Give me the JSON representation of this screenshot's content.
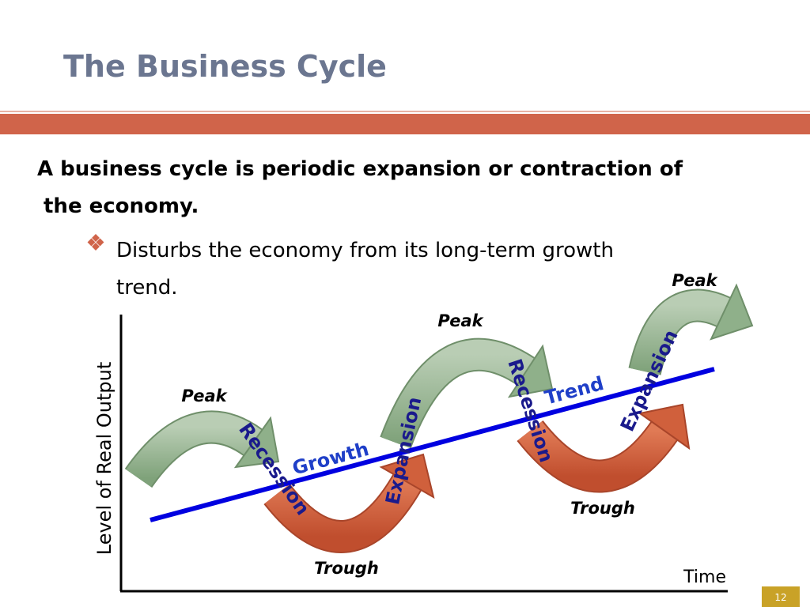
{
  "header": {
    "title": "The Business Cycle"
  },
  "body": {
    "statement_lines": [
      "A business cycle is periodic expansion or contraction of",
      "the economy."
    ],
    "bullet_lines": [
      "Disturbs the economy from its long-term growth",
      "trend."
    ]
  },
  "diagram": {
    "y_axis_label": "Level of Real Output",
    "x_axis_label": "Time",
    "peaks": [
      "Peak",
      "Peak",
      "Peak"
    ],
    "troughs": [
      "Trough",
      "Trough"
    ],
    "recessions": [
      "Recession",
      "Recession"
    ],
    "expansions": [
      "Expansion",
      "Expansion"
    ],
    "growth": "Growth",
    "trend": "Trend"
  },
  "footer": {
    "page_number": "12"
  }
}
